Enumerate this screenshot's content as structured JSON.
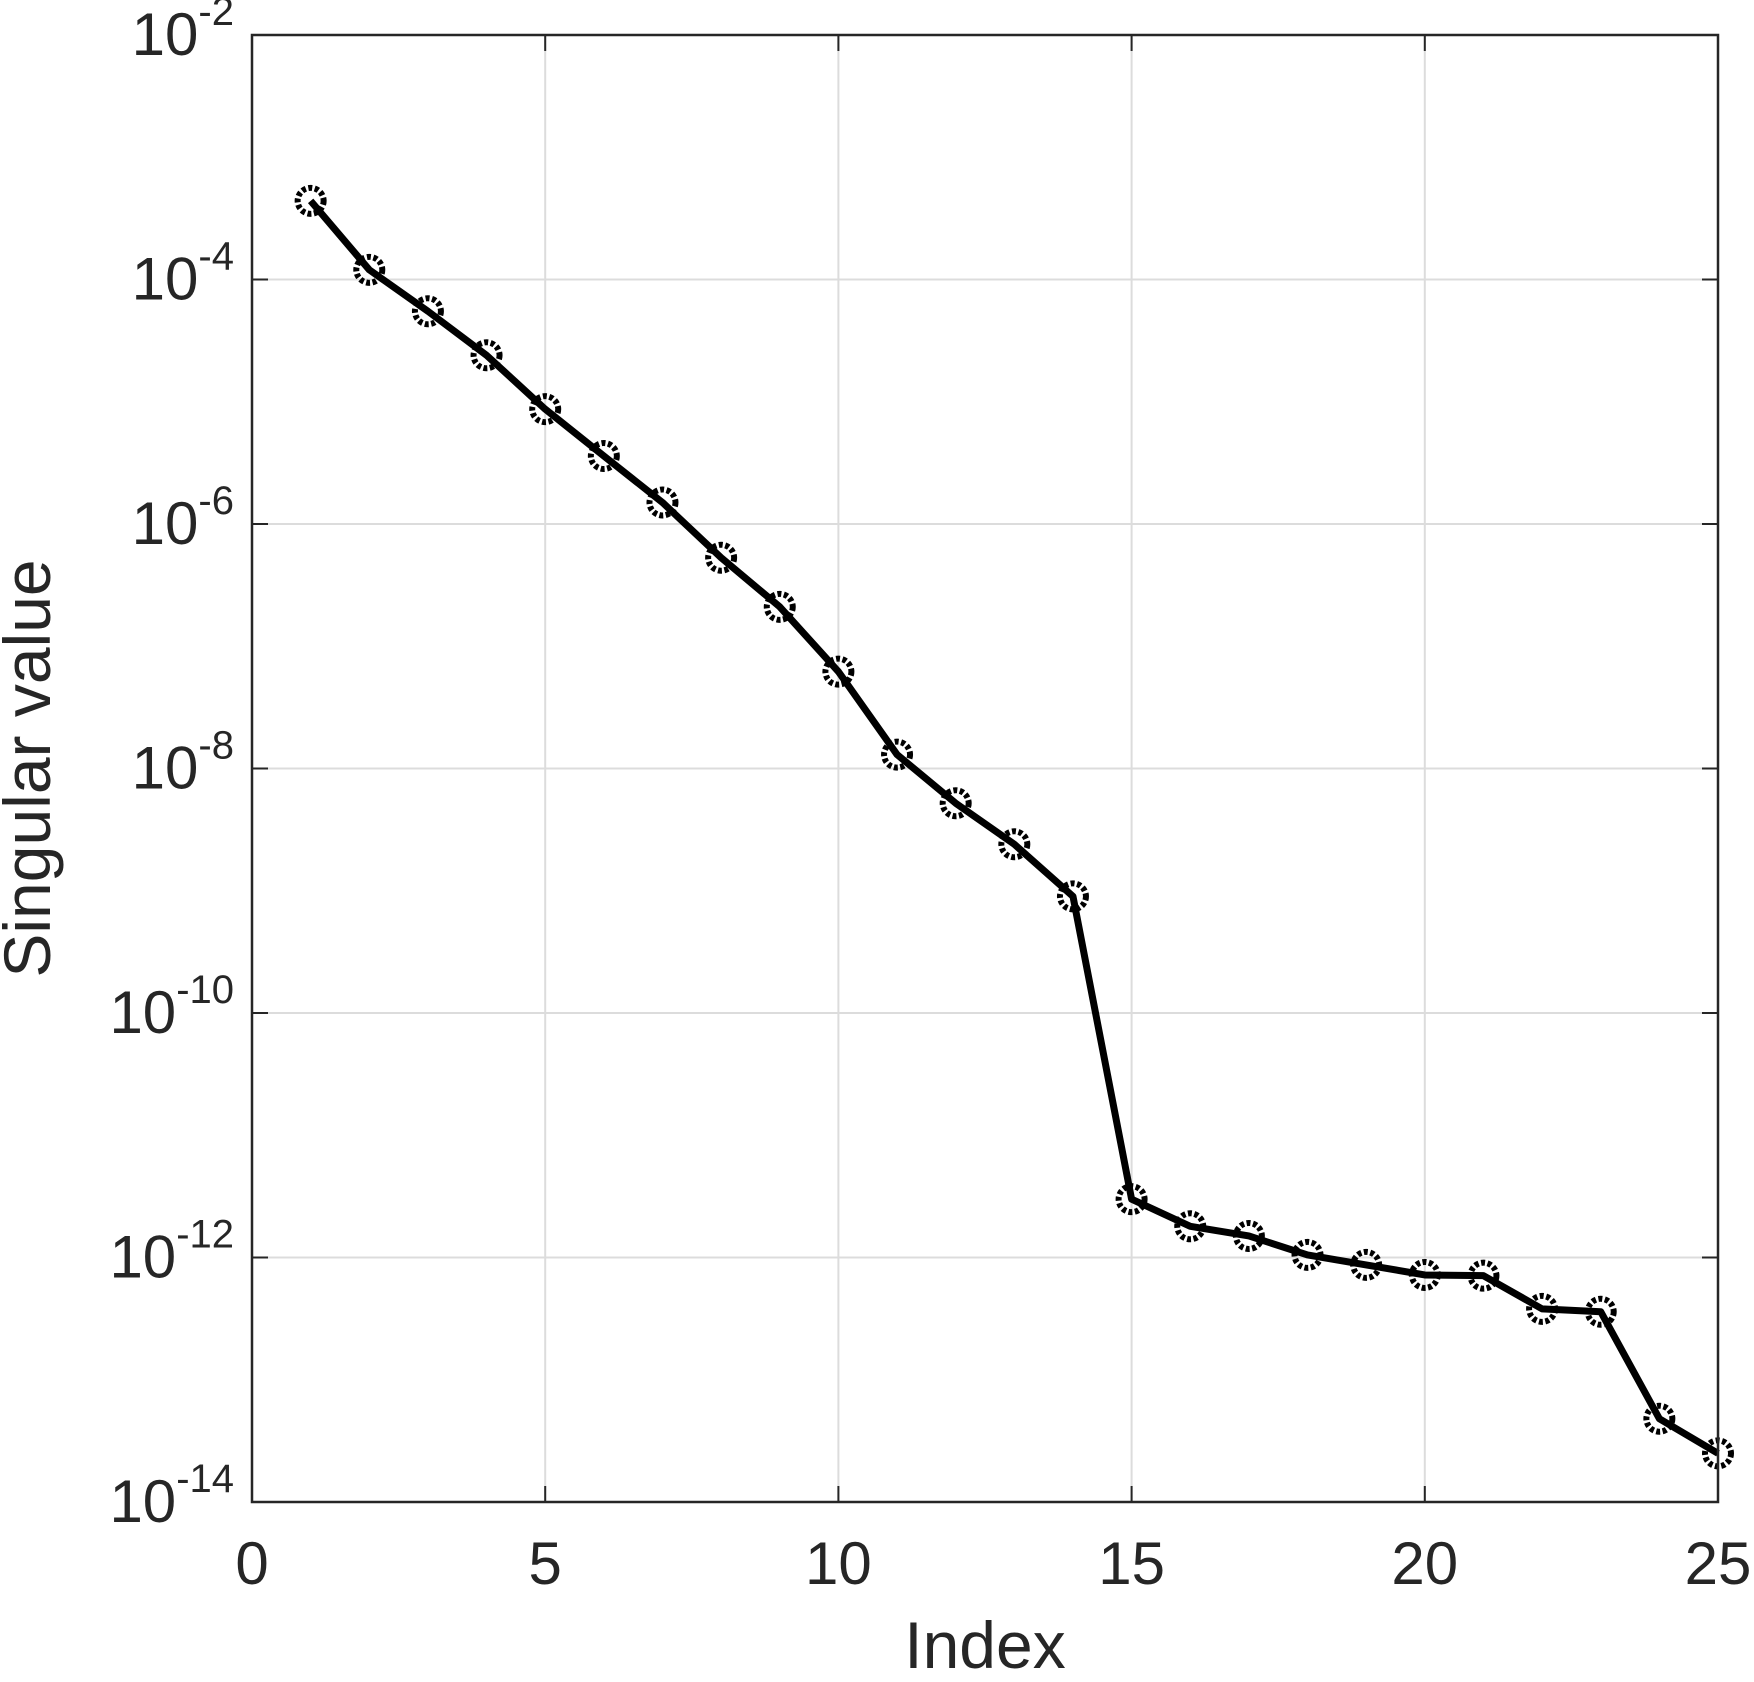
{
  "chart_data": {
    "type": "line",
    "title": "",
    "xlabel": "Index",
    "ylabel": "Singular value",
    "xlim": [
      0,
      25
    ],
    "ylim": [
      1e-14,
      0.01
    ],
    "yscale": "log",
    "grid": true,
    "legend": "none",
    "x_ticks": [
      0,
      5,
      10,
      15,
      20,
      25
    ],
    "x_tick_labels": [
      "0",
      "5",
      "10",
      "15",
      "20",
      "25"
    ],
    "y_ticks": [
      {
        "value": 1e-14,
        "base": "10",
        "exp": "-14"
      },
      {
        "value": 1e-12,
        "base": "10",
        "exp": "-12"
      },
      {
        "value": 1e-10,
        "base": "10",
        "exp": "-10"
      },
      {
        "value": 1e-08,
        "base": "10",
        "exp": "-8"
      },
      {
        "value": 1e-06,
        "base": "10",
        "exp": "-6"
      },
      {
        "value": 0.0001,
        "base": "10",
        "exp": "-4"
      },
      {
        "value": 0.01,
        "base": "10",
        "exp": "-2"
      }
    ],
    "series": [
      {
        "color": "#000000",
        "marker": "circle",
        "x": [
          1,
          2,
          3,
          4,
          5,
          6,
          7,
          8,
          9,
          10,
          11,
          12,
          13,
          14,
          15,
          16,
          17,
          18,
          19,
          20,
          21,
          22,
          23,
          24,
          25
        ],
        "y": [
          0.00044,
          0.00012,
          5.5e-05,
          2.4e-05,
          8.7e-06,
          3.6e-06,
          1.5e-06,
          5.3e-07,
          2.1e-07,
          6.2e-08,
          1.3e-08,
          5.2e-09,
          2.4e-09,
          9e-10,
          3e-12,
          1.8e-12,
          1.5e-12,
          1.05e-12,
          8.7e-13,
          7.2e-13,
          7.1e-13,
          3.8e-13,
          3.6e-13,
          4.8e-14,
          2.5e-14
        ]
      }
    ]
  }
}
